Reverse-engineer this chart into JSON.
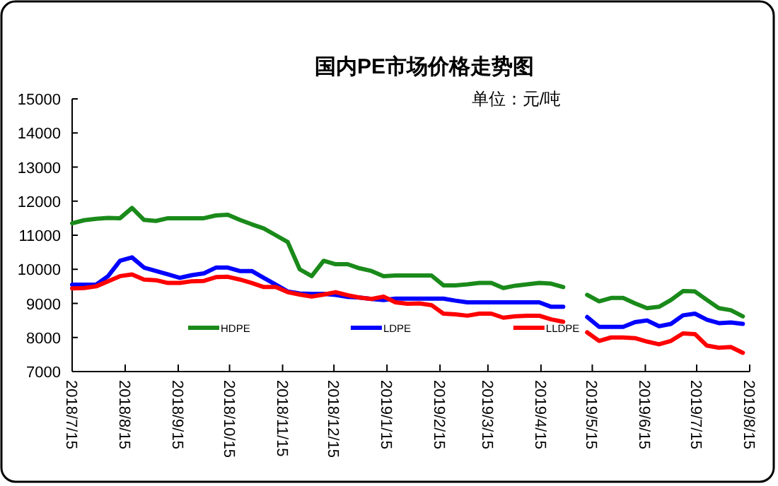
{
  "chart_data": {
    "type": "line",
    "title": "国内PE市场价格走势图",
    "subtitle": "单位：元/吨",
    "x": [
      "2018-07-15",
      "2018-07-22",
      "2018-07-29",
      "2018-08-05",
      "2018-08-12",
      "2018-08-19",
      "2018-08-26",
      "2018-09-02",
      "2018-09-09",
      "2018-09-16",
      "2018-09-23",
      "2018-09-30",
      "2018-10-07",
      "2018-10-14",
      "2018-10-21",
      "2018-10-28",
      "2018-11-04",
      "2018-11-11",
      "2018-11-18",
      "2018-11-25",
      "2018-12-02",
      "2018-12-09",
      "2018-12-16",
      "2018-12-23",
      "2018-12-30",
      "2019-01-06",
      "2019-01-13",
      "2019-01-20",
      "2019-01-27",
      "2019-02-03",
      "2019-02-10",
      "2019-02-17",
      "2019-02-24",
      "2019-03-03",
      "2019-03-10",
      "2019-03-17",
      "2019-03-24",
      "2019-03-31",
      "2019-04-07",
      "2019-04-14",
      "2019-04-21",
      "2019-04-28",
      "2019-05-05",
      "2019-05-12",
      "2019-05-19",
      "2019-05-26",
      "2019-06-02",
      "2019-06-09",
      "2019-06-16",
      "2019-06-23",
      "2019-06-30",
      "2019-07-07",
      "2019-07-14",
      "2019-07-21",
      "2019-07-28",
      "2019-08-04",
      "2019-08-11"
    ],
    "series": [
      {
        "name": "HDPE",
        "color": "#1a8a1a",
        "values": [
          11350,
          11440,
          11480,
          11510,
          11500,
          11800,
          11450,
          11420,
          11500,
          11500,
          11500,
          11500,
          11580,
          11600,
          11450,
          11320,
          11200,
          11000,
          10800,
          10000,
          9800,
          10250,
          10150,
          10150,
          10030,
          9950,
          9800,
          9820,
          9820,
          9820,
          9820,
          9530,
          9530,
          9560,
          9600,
          9600,
          9450,
          9520,
          9560,
          9600,
          9580,
          9480,
          null,
          9250,
          9060,
          9160,
          9160,
          9000,
          8860,
          8900,
          9100,
          9360,
          9350,
          9100,
          8860,
          8800,
          8620
        ]
      },
      {
        "name": "LDPE",
        "color": "#0000ff",
        "values": [
          9550,
          9550,
          9550,
          9800,
          10250,
          10350,
          10050,
          9950,
          9850,
          9750,
          9830,
          9880,
          10050,
          10050,
          9950,
          9950,
          9750,
          9550,
          9350,
          9290,
          9280,
          9280,
          9250,
          9190,
          9170,
          9130,
          9100,
          9140,
          9140,
          9140,
          9140,
          9140,
          9080,
          9030,
          9030,
          9030,
          9030,
          9030,
          9030,
          9030,
          8900,
          8900,
          null,
          8600,
          8310,
          8310,
          8310,
          8450,
          8500,
          8330,
          8400,
          8650,
          8700,
          8520,
          8420,
          8440,
          8400
        ]
      },
      {
        "name": "LLDPE",
        "color": "#ff0000",
        "values": [
          9440,
          9450,
          9500,
          9650,
          9800,
          9850,
          9700,
          9680,
          9600,
          9600,
          9650,
          9660,
          9770,
          9780,
          9700,
          9600,
          9480,
          9480,
          9330,
          9260,
          9200,
          9260,
          9330,
          9240,
          9170,
          9130,
          9200,
          9030,
          8990,
          9000,
          8950,
          8700,
          8680,
          8640,
          8700,
          8700,
          8580,
          8620,
          8640,
          8640,
          8530,
          8460,
          null,
          8150,
          7900,
          8000,
          8000,
          7980,
          7880,
          7800,
          7900,
          8120,
          8100,
          7760,
          7700,
          7720,
          7550
        ]
      }
    ],
    "xlim": [
      "2018-07-15",
      "2019-08-15"
    ],
    "xticks": [
      {
        "value": "2018-07-15",
        "label": "2018/7/15"
      },
      {
        "value": "2018-08-15",
        "label": "2018/8/15"
      },
      {
        "value": "2018-09-15",
        "label": "2018/9/15"
      },
      {
        "value": "2018-10-15",
        "label": "2018/10/15"
      },
      {
        "value": "2018-11-15",
        "label": "2018/11/15"
      },
      {
        "value": "2018-12-15",
        "label": "2018/12/15"
      },
      {
        "value": "2019-01-15",
        "label": "2019/1/15"
      },
      {
        "value": "2019-02-15",
        "label": "2019/2/15"
      },
      {
        "value": "2019-03-15",
        "label": "2019/3/15"
      },
      {
        "value": "2019-04-15",
        "label": "2019/4/15"
      },
      {
        "value": "2019-05-15",
        "label": "2019/5/15"
      },
      {
        "value": "2019-06-15",
        "label": "2019/6/15"
      },
      {
        "value": "2019-07-15",
        "label": "2019/7/15"
      },
      {
        "value": "2019-08-15",
        "label": "2019/8/15"
      }
    ],
    "ylim": [
      7000,
      15000
    ],
    "yticks": [
      7000,
      8000,
      9000,
      10000,
      11000,
      12000,
      13000,
      14000,
      15000
    ],
    "grid": false,
    "legend": "bottom",
    "marker": "none",
    "line_style": "solid"
  }
}
